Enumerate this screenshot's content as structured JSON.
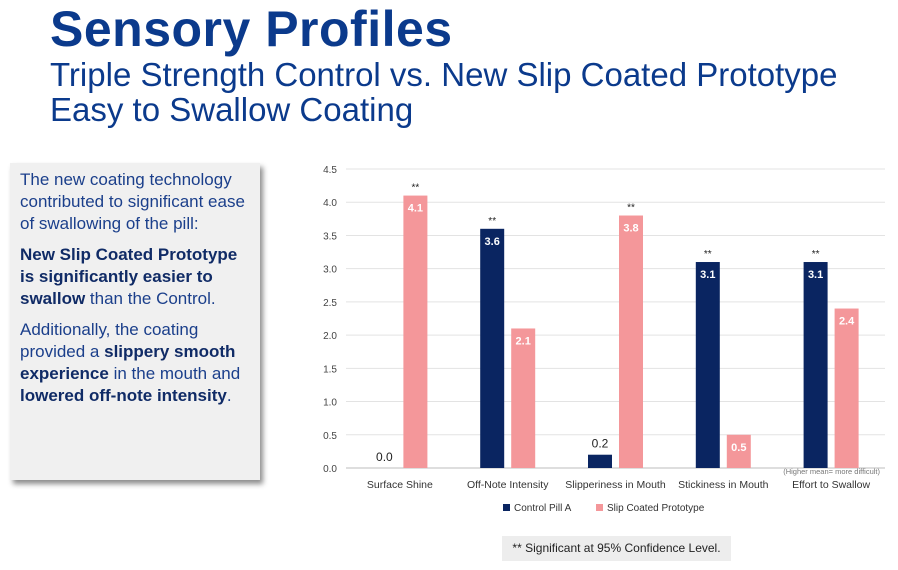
{
  "header": {
    "title": "Sensory Profiles",
    "subtitle": "Triple Strength Control vs. New Slip Coated Prototype Easy to Swallow Coating"
  },
  "callout": {
    "p1": "The new coating technology contributed to significant ease of swallowing of the pill:",
    "p2_bold": "New Slip Coated Prototype is significantly easier to swallow",
    "p2_rest": " than the Control.",
    "p3_a": "Additionally, the coating provided a ",
    "p3_b": "slippery smooth experience",
    "p3_c": " in the mouth and ",
    "p3_d": "lowered off-note intensity",
    "p3_e": "."
  },
  "chart_data": {
    "type": "bar",
    "categories": [
      "Surface Shine",
      "Off-Note Intensity",
      "Slipperiness in Mouth",
      "Stickiness in Mouth",
      "Effort to Swallow"
    ],
    "series": [
      {
        "name": "Control Pill A",
        "color": "#0a2561",
        "values": [
          0.0,
          3.6,
          0.2,
          3.1,
          3.1
        ],
        "labels": [
          "0.0",
          "3.6",
          "0.2",
          "3.1",
          "3.1"
        ]
      },
      {
        "name": "Slip Coated Prototype",
        "color": "#f4979a",
        "values": [
          4.1,
          2.1,
          3.8,
          0.5,
          2.4
        ],
        "labels": [
          "4.1",
          "2.1",
          "3.8",
          "0.5",
          "2.4"
        ]
      }
    ],
    "significance_marker": "**",
    "significant_categories": [
      0,
      1,
      2,
      3,
      4
    ],
    "significant_series": [
      1,
      0,
      1,
      0,
      0
    ],
    "ylim": [
      0,
      4.5
    ],
    "yticks": [
      "0.0",
      "0.5",
      "1.0",
      "1.5",
      "2.0",
      "2.5",
      "3.0",
      "3.5",
      "4.0",
      "4.5"
    ],
    "grid": true,
    "legend_position": "bottom",
    "annotation": "(Higher mean= more difficult)"
  },
  "footnote": "** Significant at 95% Confidence Level."
}
